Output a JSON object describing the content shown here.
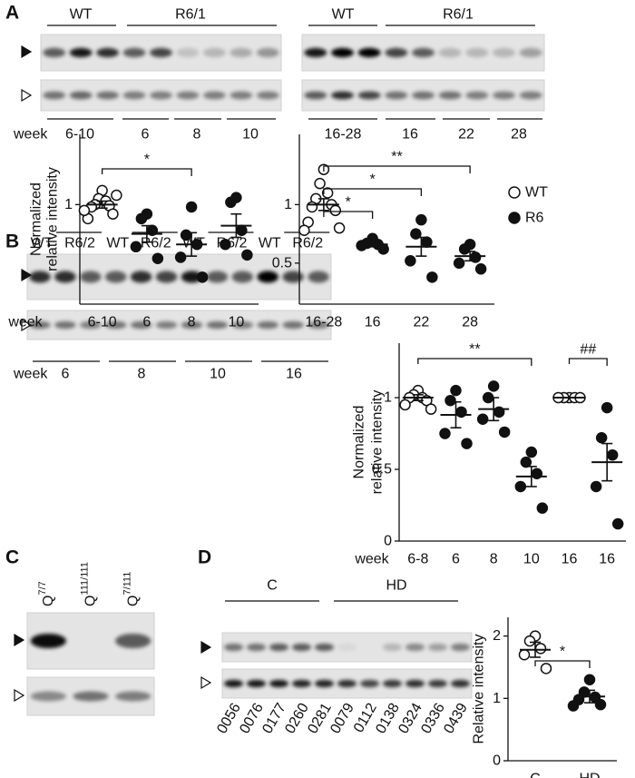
{
  "figure": {
    "panel_labels": [
      "A",
      "B",
      "C",
      "D"
    ],
    "A": {
      "left_blot": {
        "groups": [
          "WT",
          "R6/1"
        ],
        "week_label": "week",
        "weeks": [
          "6-10",
          "6",
          "8",
          "10"
        ]
      },
      "right_blot": {
        "groups": [
          "WT",
          "R6/1"
        ],
        "weeks": [
          "16-28",
          "16",
          "22",
          "28"
        ]
      }
    },
    "B": {
      "lanes": [
        "WT",
        "R6/2",
        "WT",
        "R6/2",
        "WT",
        "R6/2",
        "WT",
        "R6/2"
      ],
      "week_label": "week",
      "weeks": [
        "6",
        "8",
        "10",
        "16"
      ]
    },
    "C": {
      "genotypes": [
        {
          "base": "Q",
          "sup": "7/7"
        },
        {
          "base": "Q",
          "sup": "111/111"
        },
        {
          "base": "Q",
          "sup": "7/111"
        }
      ]
    },
    "D": {
      "groups": [
        "C",
        "HD"
      ],
      "samples": [
        "0056",
        "0076",
        "0177",
        "0260",
        "0281",
        "0079",
        "0112",
        "0138",
        "0324",
        "0336",
        "0439"
      ]
    }
  },
  "chart_data": [
    {
      "type": "dot",
      "y_label": [
        "Normalized",
        "relative intensity"
      ],
      "x_label": "week",
      "categories": [
        "6-10",
        "6",
        "8",
        "10"
      ],
      "markers": [
        "open",
        "filled",
        "filled",
        "filled"
      ],
      "points": [
        [
          1.12,
          1.05,
          1.03,
          1.0,
          0.99,
          0.98,
          0.92,
          0.88,
          1.08,
          0.95
        ],
        [
          0.92,
          0.88,
          0.78,
          0.64,
          0.54
        ],
        [
          0.98,
          0.74,
          0.66,
          0.55,
          0.38
        ],
        [
          1.06,
          1.02,
          0.78,
          0.66,
          0.57
        ]
      ],
      "means": [
        1.0,
        0.75,
        0.66,
        0.82
      ],
      "sems": [
        0.03,
        0.07,
        0.1,
        0.1
      ],
      "ylim": [
        0.15,
        1.6
      ],
      "yticks": [
        1
      ],
      "annotations": [
        {
          "text": "*",
          "between": [
            0,
            2
          ]
        }
      ]
    },
    {
      "type": "dot",
      "categories": [
        "16-28",
        "16",
        "22",
        "28"
      ],
      "markers": [
        "open",
        "filled",
        "filled",
        "filled"
      ],
      "points": [
        [
          1.3,
          1.18,
          1.1,
          1.05,
          1.0,
          0.98,
          0.95,
          0.85,
          0.8,
          0.78
        ],
        [
          0.71,
          0.67,
          0.66,
          0.65,
          0.62
        ],
        [
          0.87,
          0.75,
          0.68,
          0.52,
          0.38
        ],
        [
          0.66,
          0.62,
          0.55,
          0.5,
          0.45
        ]
      ],
      "means": [
        1.0,
        0.66,
        0.64,
        0.56
      ],
      "sems": [
        0.05,
        0.02,
        0.08,
        0.04
      ],
      "ylim": [
        0.15,
        1.6
      ],
      "yticks": [
        0.5,
        1
      ],
      "annotations": [
        {
          "text": "*",
          "between": [
            0,
            1
          ]
        },
        {
          "text": "*",
          "between": [
            0,
            2
          ]
        },
        {
          "text": "**",
          "between": [
            0,
            3
          ]
        }
      ],
      "legend": [
        {
          "name": "WT",
          "marker": "open"
        },
        {
          "name": "R6",
          "marker": "filled"
        }
      ]
    },
    {
      "type": "dot",
      "y_label": [
        "Normalized",
        "relative intensity"
      ],
      "x_label": "week",
      "categories": [
        "6-8",
        "6",
        "8",
        "10",
        "16",
        "16"
      ],
      "markers": [
        "open",
        "filled",
        "filled",
        "filled",
        "open",
        "filled"
      ],
      "points": [
        [
          1.05,
          1.02,
          1.0,
          1.0,
          0.98,
          0.95,
          0.92
        ],
        [
          1.05,
          0.98,
          0.9,
          0.75,
          0.68
        ],
        [
          1.08,
          1.0,
          0.9,
          0.85,
          0.76
        ],
        [
          0.62,
          0.55,
          0.47,
          0.38,
          0.23
        ],
        [
          1.0,
          1.0,
          1.0,
          1.0,
          1.0
        ],
        [
          0.93,
          0.72,
          0.6,
          0.38,
          0.12
        ]
      ],
      "means": [
        1.0,
        0.88,
        0.92,
        0.45,
        1.0,
        0.55
      ],
      "sems": [
        0.02,
        0.09,
        0.08,
        0.07,
        0,
        0.13
      ],
      "ylim": [
        0,
        1.38
      ],
      "yticks": [
        0,
        0.5,
        1
      ],
      "annotations": [
        {
          "text": "**",
          "between": [
            0,
            3
          ]
        },
        {
          "text": "##",
          "between": [
            4,
            5
          ]
        }
      ]
    },
    {
      "type": "dot",
      "y_label": [
        "Relative intensity"
      ],
      "categories": [
        "C",
        "HD"
      ],
      "markers": [
        "open",
        "filled"
      ],
      "points": [
        [
          2.0,
          1.92,
          1.8,
          1.7,
          1.48
        ],
        [
          1.3,
          1.1,
          1.02,
          0.98,
          0.9,
          0.88
        ]
      ],
      "means": [
        1.78,
        1.03
      ],
      "sems": [
        0.12,
        0.1
      ],
      "ylim": [
        0,
        2.3
      ],
      "yticks": [
        0,
        1,
        2
      ],
      "annotations": [
        {
          "text": "*",
          "between": [
            0,
            1
          ]
        }
      ]
    }
  ]
}
